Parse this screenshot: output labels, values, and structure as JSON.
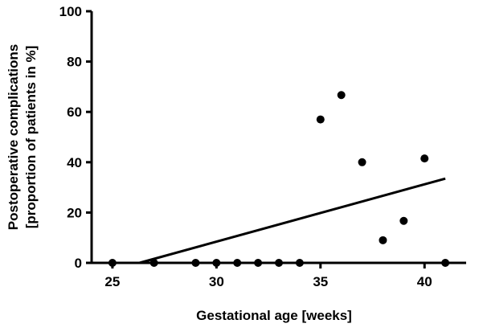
{
  "chart_data": {
    "type": "scatter",
    "xlabel": "Gestational age [weeks]",
    "ylabel_lines": [
      "Postoperative complications",
      "[proportion of patients in %]"
    ],
    "xlim": [
      24,
      42
    ],
    "ylim": [
      0,
      100
    ],
    "x_ticks": [
      25,
      30,
      35,
      40
    ],
    "y_ticks": [
      0,
      20,
      40,
      60,
      80,
      100
    ],
    "grid": false,
    "points": [
      {
        "x": 25,
        "y": 0
      },
      {
        "x": 27,
        "y": 0
      },
      {
        "x": 29,
        "y": 0
      },
      {
        "x": 30,
        "y": 0
      },
      {
        "x": 31,
        "y": 0
      },
      {
        "x": 32,
        "y": 0
      },
      {
        "x": 33,
        "y": 0
      },
      {
        "x": 34,
        "y": 0
      },
      {
        "x": 35,
        "y": 57
      },
      {
        "x": 36,
        "y": 66.7
      },
      {
        "x": 37,
        "y": 40
      },
      {
        "x": 38,
        "y": 9
      },
      {
        "x": 39,
        "y": 16.7
      },
      {
        "x": 40,
        "y": 41.5
      },
      {
        "x": 41,
        "y": 0
      }
    ],
    "trend_line": {
      "x_start": 26.3,
      "y_start": 0,
      "x_end": 41,
      "y_end": 33.5
    },
    "colors": {
      "marks": "#000000",
      "background": "#ffffff"
    }
  }
}
